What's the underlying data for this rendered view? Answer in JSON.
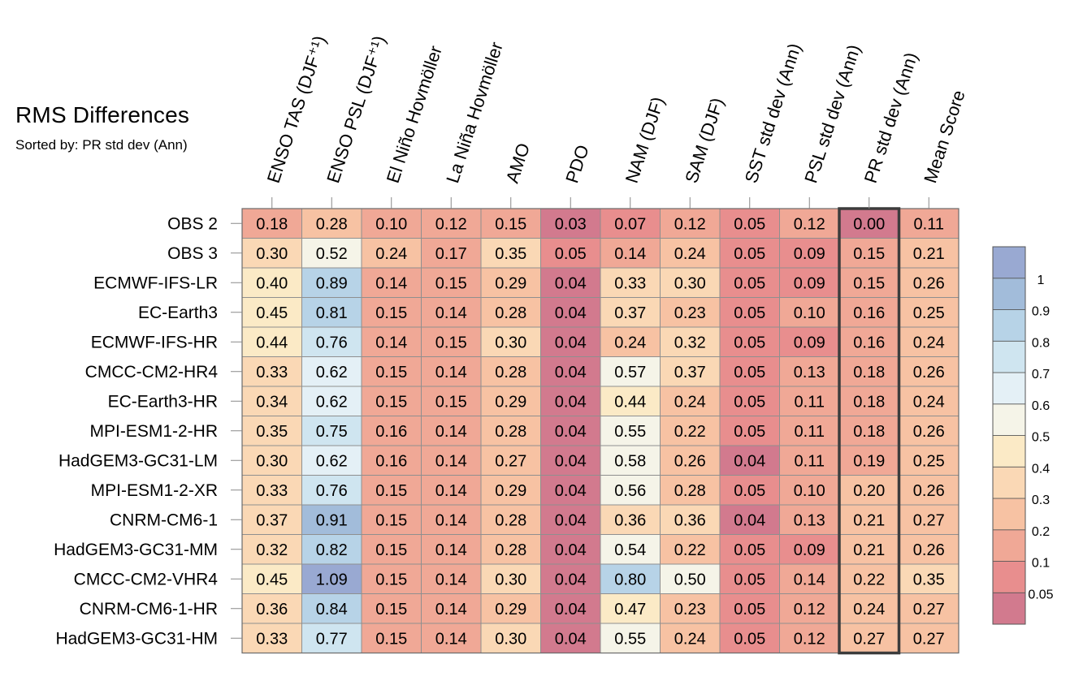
{
  "chart_data": {
    "type": "heatmap",
    "title": "RMS Differences",
    "subtitle": "Sorted by: PR std dev (Ann)",
    "columns": [
      "ENSO TAS (DJF⁺¹)",
      "ENSO PSL (DJF⁺¹)",
      "El Niño Hovmöller",
      "La Niña Hovmöller",
      "AMO",
      "PDO",
      "NAM (DJF)",
      "SAM (DJF)",
      "SST std dev (Ann)",
      "PSL std dev (Ann)",
      "PR std dev (Ann)",
      "Mean Score"
    ],
    "highlighted_column": "PR std dev (Ann)",
    "rows": [
      "OBS 2",
      "OBS 3",
      "ECMWF-IFS-LR",
      "EC-Earth3",
      "ECMWF-IFS-HR",
      "CMCC-CM2-HR4",
      "EC-Earth3-HR",
      "MPI-ESM1-2-HR",
      "HadGEM3-GC31-LM",
      "MPI-ESM1-2-XR",
      "CNRM-CM6-1",
      "HadGEM3-GC31-MM",
      "CMCC-CM2-VHR4",
      "CNRM-CM6-1-HR",
      "HadGEM3-GC31-HM"
    ],
    "values": [
      [
        "0.18",
        "0.28",
        "0.10",
        "0.12",
        "0.15",
        "0.03",
        "0.07",
        "0.12",
        "0.05",
        "0.12",
        "0.00",
        "0.11"
      ],
      [
        "0.30",
        "0.52",
        "0.24",
        "0.17",
        "0.35",
        "0.05",
        "0.14",
        "0.24",
        "0.05",
        "0.09",
        "0.15",
        "0.21"
      ],
      [
        "0.40",
        "0.89",
        "0.14",
        "0.15",
        "0.29",
        "0.04",
        "0.33",
        "0.30",
        "0.05",
        "0.09",
        "0.15",
        "0.26"
      ],
      [
        "0.45",
        "0.81",
        "0.15",
        "0.14",
        "0.28",
        "0.04",
        "0.37",
        "0.23",
        "0.05",
        "0.10",
        "0.16",
        "0.25"
      ],
      [
        "0.44",
        "0.76",
        "0.14",
        "0.15",
        "0.30",
        "0.04",
        "0.24",
        "0.32",
        "0.05",
        "0.09",
        "0.16",
        "0.24"
      ],
      [
        "0.33",
        "0.62",
        "0.15",
        "0.14",
        "0.28",
        "0.04",
        "0.57",
        "0.37",
        "0.05",
        "0.13",
        "0.18",
        "0.26"
      ],
      [
        "0.34",
        "0.62",
        "0.15",
        "0.15",
        "0.29",
        "0.04",
        "0.44",
        "0.24",
        "0.05",
        "0.11",
        "0.18",
        "0.24"
      ],
      [
        "0.35",
        "0.75",
        "0.16",
        "0.14",
        "0.28",
        "0.04",
        "0.55",
        "0.22",
        "0.05",
        "0.11",
        "0.18",
        "0.26"
      ],
      [
        "0.30",
        "0.62",
        "0.16",
        "0.14",
        "0.27",
        "0.04",
        "0.58",
        "0.26",
        "0.04",
        "0.11",
        "0.19",
        "0.25"
      ],
      [
        "0.33",
        "0.76",
        "0.15",
        "0.14",
        "0.29",
        "0.04",
        "0.56",
        "0.28",
        "0.05",
        "0.10",
        "0.20",
        "0.26"
      ],
      [
        "0.37",
        "0.91",
        "0.15",
        "0.14",
        "0.28",
        "0.04",
        "0.36",
        "0.36",
        "0.04",
        "0.13",
        "0.21",
        "0.27"
      ],
      [
        "0.32",
        "0.82",
        "0.15",
        "0.14",
        "0.28",
        "0.04",
        "0.54",
        "0.22",
        "0.05",
        "0.09",
        "0.21",
        "0.26"
      ],
      [
        "0.45",
        "1.09",
        "0.15",
        "0.14",
        "0.30",
        "0.04",
        "0.80",
        "0.50",
        "0.05",
        "0.14",
        "0.22",
        "0.35"
      ],
      [
        "0.36",
        "0.84",
        "0.15",
        "0.14",
        "0.29",
        "0.04",
        "0.47",
        "0.23",
        "0.05",
        "0.12",
        "0.24",
        "0.27"
      ],
      [
        "0.33",
        "0.77",
        "0.15",
        "0.14",
        "0.30",
        "0.04",
        "0.55",
        "0.24",
        "0.05",
        "0.12",
        "0.27",
        "0.27"
      ]
    ],
    "colorbar": {
      "levels": [
        "0.05",
        "0.1",
        "0.2",
        "0.3",
        "0.4",
        "0.5",
        "0.6",
        "0.7",
        "0.8",
        "0.9",
        "1"
      ],
      "colors": [
        "#d27a8e",
        "#e88e8e",
        "#f0a896",
        "#f7c2a3",
        "#fad8b5",
        "#fbeac6",
        "#f5f4e8",
        "#e4f0f6",
        "#cfe5f0",
        "#b7d3e7",
        "#a2bcda",
        "#99a9d2"
      ]
    }
  }
}
